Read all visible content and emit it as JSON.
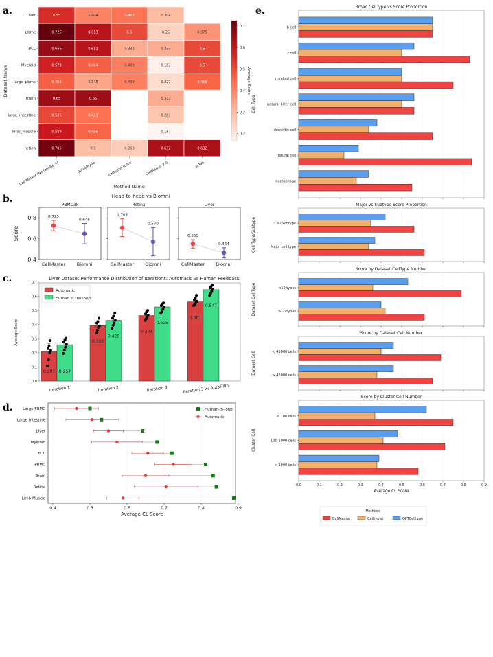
{
  "panel_labels": [
    "a.",
    "b.",
    "c.",
    "d.",
    "e."
  ],
  "colors": {
    "cellmaster": "#f24343",
    "celltypist": "#f2b06b",
    "gptcelltype": "#5a9ef0",
    "biomni": "#6a4fb8",
    "automatic": "#d94040",
    "human": "#3fdc8a",
    "human_marker": "#118011"
  },
  "chart_data": [
    {
      "type": "heatmap",
      "xlabel": "Method Name",
      "ylabel": "Dataset Name",
      "colorbar_label": "Average Score",
      "colormap": "Reds",
      "colorbar_ticks": [
        "0.2",
        "0.3",
        "0.4",
        "0.5",
        "0.6",
        "0.7"
      ],
      "columns": [
        "Cell Master (No feedback)",
        "gptcelltype",
        "celltypist score",
        "CellMarker 2.0",
        "scTab"
      ],
      "rows": [
        "Liver",
        "pbmc",
        "BCL",
        "Myeloid",
        "large_pbmc",
        "brain",
        "large_intestine",
        "limb_muscle",
        "retina"
      ],
      "values": [
        [
          0.55,
          0.404,
          0.429,
          0.304,
          null
        ],
        [
          0.725,
          0.613,
          0.5,
          0.25,
          0.375
        ],
        [
          0.656,
          0.611,
          0.333,
          0.333,
          0.5
        ],
        [
          0.573,
          0.464,
          0.409,
          0.182,
          0.5
        ],
        [
          0.464,
          0.345,
          0.409,
          0.227,
          0.455
        ],
        [
          0.65,
          0.65,
          null,
          0.333,
          null
        ],
        [
          0.506,
          0.431,
          null,
          0.281,
          null
        ],
        [
          0.589,
          0.456,
          null,
          0.167,
          null
        ],
        [
          0.705,
          0.3,
          0.263,
          0.632,
          0.632
        ]
      ]
    },
    {
      "type": "scatter",
      "title": "Head-to-head vs Biomni",
      "ylabel": "Score",
      "ylim": [
        0.4,
        0.9
      ],
      "yticks": [
        "0.4",
        "0.6",
        "0.8"
      ],
      "categories": [
        "CellMaster",
        "Biomni"
      ],
      "subplots": [
        {
          "title": "PBMC3k",
          "values": [
            0.725,
            0.646
          ],
          "labels": [
            "0.725",
            "0.646"
          ],
          "err_low": [
            0.675,
            0.55
          ],
          "err_high": [
            0.775,
            0.745
          ]
        },
        {
          "title": "Retina",
          "values": [
            0.705,
            0.57
          ],
          "labels": [
            "0.705",
            "0.570"
          ],
          "err_low": [
            0.62,
            0.435
          ],
          "err_high": [
            0.79,
            0.705
          ]
        },
        {
          "title": "Liver",
          "values": [
            0.55,
            0.464
          ],
          "labels": [
            "0.550",
            "0.464"
          ],
          "err_low": [
            0.51,
            0.415
          ],
          "err_high": [
            0.59,
            0.513
          ]
        }
      ]
    },
    {
      "type": "bar",
      "title": "Liver Dataset Performance Distribution of Iterations: Automatic vs Human Feedback",
      "ylabel": "Average Score",
      "ylim": [
        0,
        0.7
      ],
      "yticks": [
        "0.0",
        "0.1",
        "0.2",
        "0.3",
        "0.4",
        "0.5",
        "0.6",
        "0.7"
      ],
      "categories": [
        "Iteration 1",
        "Iteration 2",
        "Iteration 3",
        "Iteration 3 w/ AutoFillIn"
      ],
      "legend_position": "top-left",
      "series": [
        {
          "name": "Automatic",
          "values": [
            0.207,
            0.393,
            0.464,
            0.561
          ],
          "labels": [
            "0.207",
            "0.393",
            "0.464",
            "0.561"
          ],
          "err": [
            0.058,
            0.035,
            0.03,
            0.025
          ],
          "points": [
            [
              0.107,
              0.15,
              0.2,
              0.215,
              0.23,
              0.25,
              0.286
            ],
            [
              0.34,
              0.36,
              0.38,
              0.39,
              0.41,
              0.42,
              0.445
            ],
            [
              0.43,
              0.44,
              0.455,
              0.465,
              0.475,
              0.49,
              0.5
            ],
            [
              0.535,
              0.545,
              0.555,
              0.565,
              0.575,
              0.59,
              0.607
            ]
          ]
        },
        {
          "name": "Human in the loop",
          "values": [
            0.257,
            0.429,
            0.525,
            0.647
          ],
          "labels": [
            "0.257",
            "0.429",
            "0.525",
            "0.647"
          ],
          "err": [
            0.04,
            0.035,
            0.03,
            0.025
          ],
          "points": [
            [
              0.195,
              0.22,
              0.24,
              0.26,
              0.275,
              0.29,
              0.303
            ],
            [
              0.375,
              0.395,
              0.41,
              0.43,
              0.445,
              0.46,
              0.482
            ],
            [
              0.48,
              0.49,
              0.51,
              0.525,
              0.535,
              0.545,
              0.553
            ],
            [
              0.607,
              0.62,
              0.635,
              0.65,
              0.66,
              0.67,
              0.68
            ]
          ]
        }
      ]
    },
    {
      "type": "scatter",
      "xlabel": "Average CL Score",
      "xlim": [
        0.39,
        0.91
      ],
      "xticks": [
        "0.4",
        "0.5",
        "0.6",
        "0.7",
        "0.8",
        "0.9"
      ],
      "legend_position": "top-right",
      "categories": [
        "Large PBMC",
        "Large Intestine",
        "Liver",
        "Myeloid",
        "BCL",
        "PBMC",
        "Brain",
        "Retina",
        "Limb Muscle"
      ],
      "series": [
        {
          "name": "Human-in-loop",
          "values": [
            0.5,
            0.531,
            0.642,
            0.681,
            0.721,
            0.812,
            0.832,
            0.841,
            0.888
          ]
        },
        {
          "name": "Automatic",
          "values": [
            0.464,
            0.506,
            0.55,
            0.573,
            0.656,
            0.725,
            0.65,
            0.705,
            0.589
          ],
          "err_low": [
            0.405,
            0.435,
            0.51,
            0.505,
            0.613,
            0.675,
            0.587,
            0.619,
            0.545
          ],
          "err_high": [
            0.523,
            0.578,
            0.59,
            0.641,
            0.698,
            0.775,
            0.713,
            0.791,
            0.633
          ]
        }
      ]
    },
    {
      "type": "bar",
      "orientation": "horizontal",
      "xlabel": "Average CL Score",
      "xlim": [
        0,
        0.9
      ],
      "xticks": [
        "0.0",
        "0.1",
        "0.2",
        "0.3",
        "0.4",
        "0.5",
        "0.6",
        "0.7",
        "0.8",
        "0.9"
      ],
      "legend_title": "Methods",
      "legend_position": "bottom",
      "series_names": [
        "CellMaster",
        "Celltypist",
        "GPTCelltype"
      ],
      "subplots": [
        {
          "title": "Broad CellType vs Score Proportion",
          "ylabel": "Cell Type",
          "categories": [
            "b cell",
            "t cell",
            "myeloid cell",
            "natural killer cell",
            "dendritic cell",
            "neural cell",
            "macrophage"
          ],
          "CellMaster": [
            0.65,
            0.83,
            0.75,
            0.56,
            0.65,
            0.84,
            0.55
          ],
          "Celltypist": [
            0.65,
            0.5,
            0.5,
            0.5,
            0.34,
            0.22,
            0.28
          ],
          "GPTCelltype": [
            0.65,
            0.56,
            0.5,
            0.56,
            0.38,
            0.29,
            0.34
          ]
        },
        {
          "title": "Major vs Subtype Score Proportion",
          "ylabel": "Cell Type/Subtype",
          "categories": [
            "Cell Subtype",
            "Major cell type"
          ],
          "CellMaster": [
            0.56,
            0.61
          ],
          "Celltypist": [
            0.35,
            0.34
          ],
          "GPTCelltype": [
            0.42,
            0.37
          ]
        },
        {
          "title": "Score by Dataset CellType Number",
          "ylabel": "Dataset CellType",
          "categories": [
            "<10 types",
            ">10 types"
          ],
          "CellMaster": [
            0.79,
            0.61
          ],
          "Celltypist": [
            0.36,
            0.42
          ],
          "GPTCelltype": [
            0.53,
            0.4
          ]
        },
        {
          "title": "Score by Dataset Cell Number",
          "ylabel": "Dataset Cell",
          "categories": [
            "< 45000 cells",
            "> 45000 cells"
          ],
          "CellMaster": [
            0.69,
            0.65
          ],
          "Celltypist": [
            0.4,
            0.38
          ],
          "GPTCelltype": [
            0.46,
            0.46
          ]
        },
        {
          "title": "Score by Cluster Cell Number",
          "ylabel": "Cluster Cell",
          "categories": [
            "< 100 cells",
            "100-1000 cells",
            "> 1000 cells"
          ],
          "CellMaster": [
            0.75,
            0.71,
            0.58
          ],
          "Celltypist": [
            0.37,
            0.41,
            0.38
          ],
          "GPTCelltype": [
            0.62,
            0.48,
            0.39
          ]
        }
      ]
    }
  ]
}
